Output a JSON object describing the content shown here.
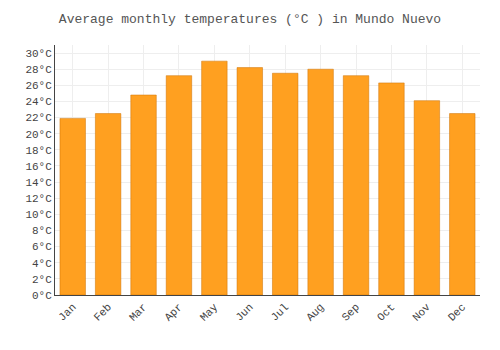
{
  "chart_data": {
    "type": "bar",
    "title": "Average monthly temperatures (°C ) in Mundo Nuevo",
    "categories": [
      "Jan",
      "Feb",
      "Mar",
      "Apr",
      "May",
      "Jun",
      "Jul",
      "Aug",
      "Sep",
      "Oct",
      "Nov",
      "Dec"
    ],
    "values": [
      21.9,
      22.5,
      24.8,
      27.2,
      29.0,
      28.2,
      27.5,
      28.0,
      27.2,
      26.3,
      24.1,
      22.5
    ],
    "color": "#FFA020",
    "ylim": [
      0,
      31
    ],
    "yticks": [
      {
        "value": 0,
        "label": "0°C"
      },
      {
        "value": 2,
        "label": "2°C"
      },
      {
        "value": 4,
        "label": "4°C"
      },
      {
        "value": 6,
        "label": "6°C"
      },
      {
        "value": 8,
        "label": "8°C"
      },
      {
        "value": 10,
        "label": "10°C"
      },
      {
        "value": 12,
        "label": "12°C"
      },
      {
        "value": 14,
        "label": "14°C"
      },
      {
        "value": 16,
        "label": "16°C"
      },
      {
        "value": 18,
        "label": "18°C"
      },
      {
        "value": 20,
        "label": "20°C"
      },
      {
        "value": 22,
        "label": "22°C"
      },
      {
        "value": 24,
        "label": "24°C"
      },
      {
        "value": 26,
        "label": "26°C"
      },
      {
        "value": 28,
        "label": "28°C"
      },
      {
        "value": 30,
        "label": "30°C"
      }
    ],
    "grid": true
  }
}
